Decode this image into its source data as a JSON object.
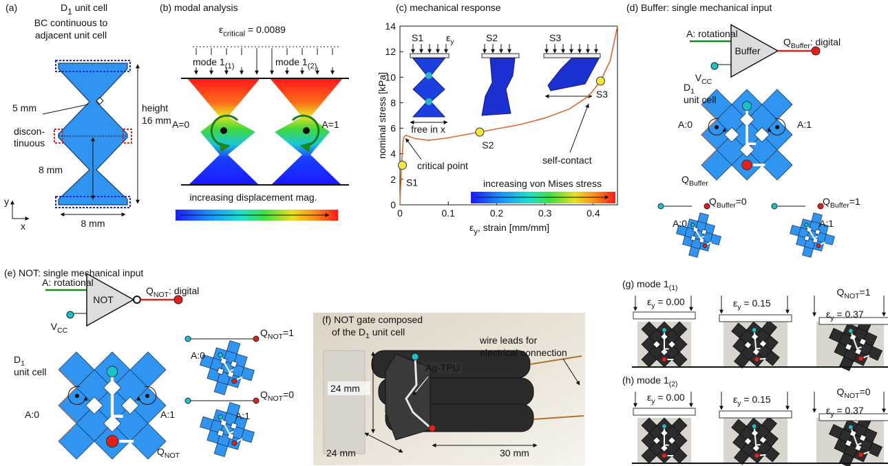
{
  "panel_a": {
    "label": "(a)",
    "title": {
      "main": "D",
      "sub": "1",
      "tail": " unit cell"
    },
    "bc_note": [
      "BC continuous to",
      "adjacent unit cell"
    ],
    "neck": "5 mm",
    "discontinuous": [
      "discon-",
      "tinuous"
    ],
    "inner_height": "8 mm",
    "height": [
      "height",
      "16 mm"
    ],
    "width": "8 mm",
    "axis_y": "y",
    "axis_x": "x"
  },
  "panel_b": {
    "label": "(b) modal analysis",
    "epsilon": {
      "main": "ε",
      "sub": "critical",
      "tail": " = 0.0089"
    },
    "modes": [
      {
        "main": "mode 1",
        "sub": "(1)"
      },
      {
        "main": "mode 1",
        "sub": "(2)"
      }
    ],
    "states": [
      "A=0",
      "A=1"
    ],
    "colorbar": "increasing displacement mag."
  },
  "panel_c": {
    "type": "line",
    "label": "(c) mechanical response",
    "xlabel": {
      "main": "ε",
      "sub": "y",
      "tail": ", strain [mm/mm]"
    },
    "ylabel": "nominal stress [kPa]",
    "xlim": [
      0,
      0.45
    ],
    "xticks": [
      0,
      0.1,
      0.2,
      0.3,
      0.4
    ],
    "ylim": [
      0,
      14
    ],
    "yticks": [
      0,
      2,
      4,
      6,
      8,
      10,
      12,
      14
    ],
    "curve": {
      "color": "#d9692c",
      "x": [
        0,
        0.003,
        0.007,
        0.012,
        0.03,
        0.06,
        0.1,
        0.15,
        0.2,
        0.25,
        0.3,
        0.35,
        0.39,
        0.415,
        0.435,
        0.45
      ],
      "y": [
        0,
        3,
        5.2,
        5.45,
        5.2,
        5.05,
        5.25,
        5.6,
        5.95,
        6.3,
        6.8,
        7.5,
        8.5,
        9.7,
        11.3,
        14
      ]
    },
    "points": [
      {
        "name": "S1",
        "x": 0.005,
        "y": 3.1
      },
      {
        "name": "S2",
        "x": 0.165,
        "y": 5.7
      },
      {
        "name": "S3",
        "x": 0.415,
        "y": 9.7
      }
    ],
    "insets": [
      "S1",
      "S2",
      "S3"
    ],
    "inset_strain": {
      "main": "ε",
      "sub": "y"
    },
    "free": "free in x",
    "annotations": [
      "critical point",
      "self-contact"
    ],
    "colorbar": "increasing von Mises stress"
  },
  "panel_d": {
    "label": "(d) Buffer: single mechanical input",
    "input": "A: rotational",
    "gate": "Buffer",
    "output": {
      "main": "Q",
      "sub": "Buffer",
      "tail": ": digital"
    },
    "vcc": {
      "main": "V",
      "sub": "CC"
    },
    "cell": {
      "main": "D",
      "sub": "1"
    },
    "cell_text": "unit cell",
    "states": [
      "A:0",
      "A:1"
    ],
    "q": {
      "main": "Q",
      "sub": "Buffer"
    },
    "small": [
      {
        "state": "A:0",
        "q": {
          "main": "Q",
          "sub": "Buffer",
          "tail": "=0"
        }
      },
      {
        "state": "A:1",
        "q": {
          "main": "Q",
          "sub": "Buffer",
          "tail": "=1"
        }
      }
    ]
  },
  "panel_e": {
    "label": "(e) NOT: single mechanical input",
    "input": "A: rotational",
    "gate": "NOT",
    "output": {
      "main": "Q",
      "sub": "NOT",
      "tail": ": digital"
    },
    "vcc": {
      "main": "V",
      "sub": "CC"
    },
    "cell": {
      "main": "D",
      "sub": "1"
    },
    "cell_text": "unit cell",
    "states": [
      "A:0",
      "A:1"
    ],
    "q": {
      "main": "Q",
      "sub": "NOT"
    },
    "small": [
      {
        "state": "A:0",
        "q": {
          "main": "Q",
          "sub": "NOT",
          "tail": "=1"
        }
      },
      {
        "state": "A:1",
        "q": {
          "main": "Q",
          "sub": "NOT",
          "tail": "=0"
        }
      }
    ]
  },
  "panel_f": {
    "label": [
      "(f) NOT gate composed",
      {
        "main": "of the D",
        "sub": "1",
        "tail": " unit cell"
      }
    ],
    "wire": [
      "wire leads for",
      "electrical connection"
    ],
    "material": "Ag-TPU",
    "height": "24 mm",
    "depth": "24 mm",
    "length": "30 mm"
  },
  "panel_g": {
    "label": {
      "main": "(g) mode 1",
      "sub": "(1)"
    },
    "q": {
      "main": "Q",
      "sub": "NOT",
      "tail": "=1"
    },
    "strains": [
      {
        "main": "ε",
        "sub": "y",
        "tail": " = 0.00"
      },
      {
        "main": "ε",
        "sub": "y",
        "tail": " = 0.15"
      },
      {
        "main": "ε",
        "sub": "y",
        "tail": " = 0.37"
      }
    ]
  },
  "panel_h": {
    "label": {
      "main": "(h) mode 1",
      "sub": "(2)"
    },
    "q": {
      "main": "Q",
      "sub": "NOT",
      "tail": "=0"
    },
    "strains": [
      {
        "main": "ε",
        "sub": "y",
        "tail": " = 0.00"
      },
      {
        "main": "ε",
        "sub": "y",
        "tail": " = 0.15"
      },
      {
        "main": "ε",
        "sub": "y",
        "tail": " = 0.37"
      }
    ]
  }
}
